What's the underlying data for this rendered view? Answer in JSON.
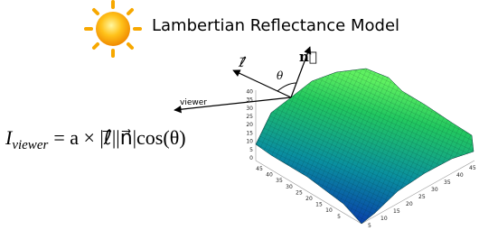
{
  "title": "Lambertian Reflectance Model",
  "labels": {
    "light": "ℓ⃗",
    "normal": "n⃗",
    "angle": "θ",
    "viewer": "viewer"
  },
  "equation": {
    "symbol": "I",
    "subscript": "viewer",
    "rhs": "= a × |ℓ⃗||n⃗|cos(θ)"
  },
  "plot": {
    "z_ticks": [
      "0",
      "5",
      "10",
      "15",
      "20",
      "25",
      "30",
      "35",
      "40"
    ],
    "left_ticks": [
      "45",
      "40",
      "35",
      "30",
      "25",
      "20",
      "15",
      "10",
      "5"
    ],
    "right_ticks": [
      "5",
      "10",
      "15",
      "20",
      "25",
      "30",
      "35",
      "40",
      "45"
    ]
  }
}
